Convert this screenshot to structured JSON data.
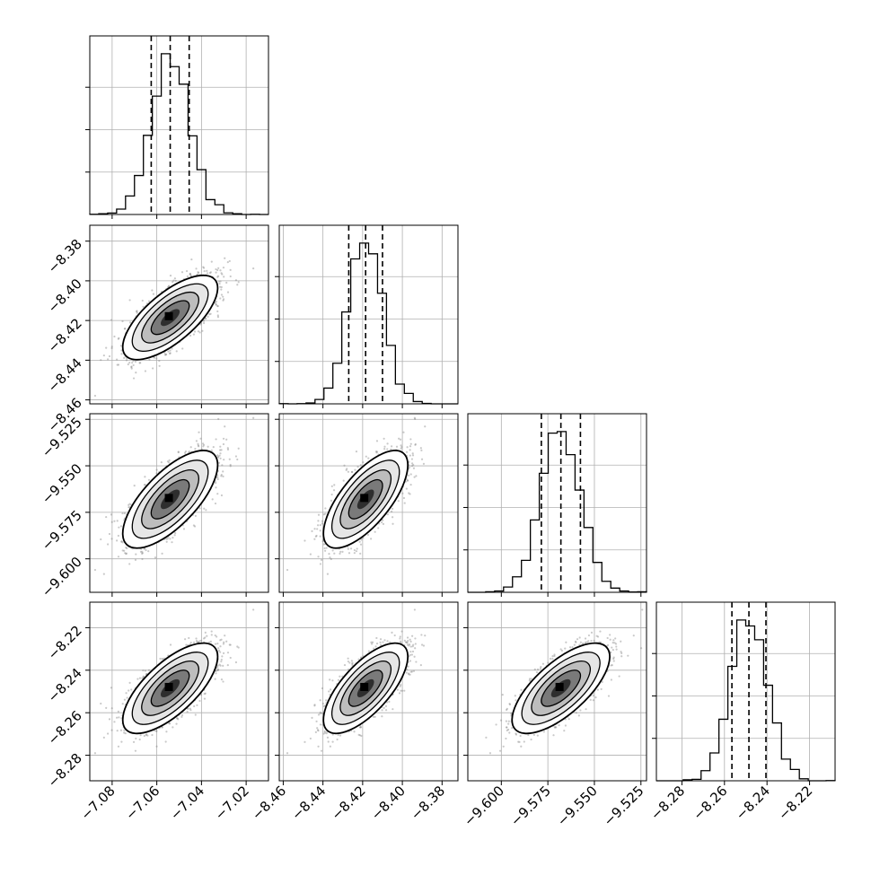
{
  "chart_data": {
    "type": "corner",
    "parameters": [
      {
        "range": [
          -7.09,
          -7.01
        ],
        "ticks": [
          -7.08,
          -7.06,
          -7.04,
          -7.02
        ],
        "tick_labels": [
          "−7.08",
          "−7.06",
          "−7.04",
          "−7.02"
        ],
        "mean": -7.054,
        "sigma": 0.0085,
        "quantiles": [
          -7.0625,
          -7.054,
          -7.0455
        ]
      },
      {
        "range": [
          -8.462,
          -8.372
        ],
        "ticks": [
          -8.46,
          -8.44,
          -8.42,
          -8.4,
          -8.38
        ],
        "tick_labels": [
          "−8.46",
          "−8.44",
          "−8.42",
          "−8.40",
          "−8.38"
        ],
        "mean": -8.4185,
        "sigma": 0.0085,
        "quantiles": [
          -8.427,
          -8.4185,
          -8.41
        ]
      },
      {
        "range": [
          -9.618,
          -9.522
        ],
        "ticks": [
          -9.6,
          -9.575,
          -9.55,
          -9.525
        ],
        "tick_labels": [
          "−9.600",
          "−9.575",
          "−9.550",
          "−9.525"
        ],
        "mean": -9.568,
        "sigma": 0.0105,
        "quantiles": [
          -9.5785,
          -9.568,
          -9.5575
        ]
      },
      {
        "range": [
          -8.292,
          -8.208
        ],
        "ticks": [
          -8.28,
          -8.26,
          -8.24,
          -8.22
        ],
        "tick_labels": [
          "−8.28",
          "−8.26",
          "−8.24",
          "−8.22"
        ],
        "mean": -8.2485,
        "sigma": 0.0085,
        "quantiles": [
          -8.2565,
          -8.2485,
          -8.2405
        ]
      }
    ],
    "correlation": 0.7,
    "histogram_bins": 20,
    "grid": true,
    "quantile_lines": "dashed",
    "contour_levels": 4,
    "colors": {
      "points": "#888888",
      "contour": "#000000",
      "density": "#000000",
      "grid": "#b0b0b0"
    }
  }
}
